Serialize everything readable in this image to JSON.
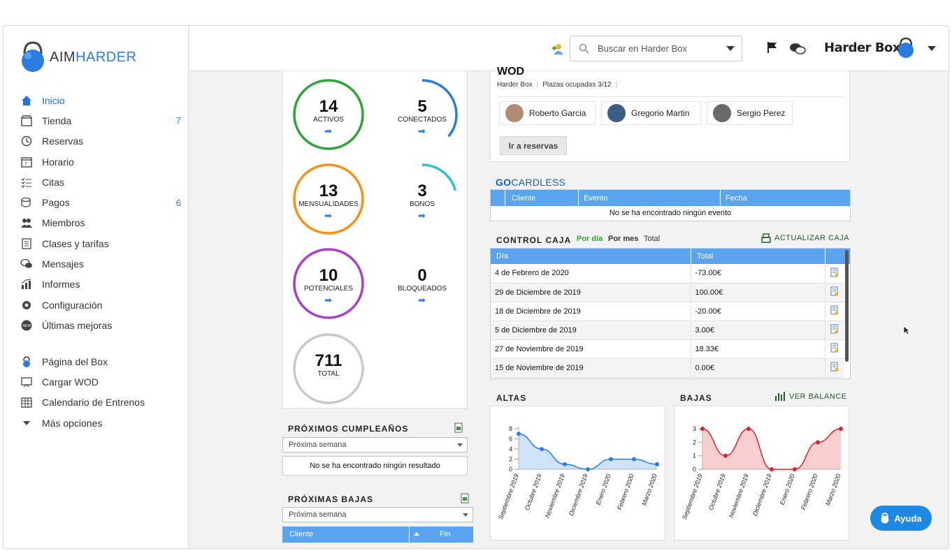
{
  "brand": {
    "logo_prefix": "AIM",
    "logo_suffix": "HARDER"
  },
  "sidebar": {
    "items": [
      {
        "label": "Inicio",
        "icon": "home-icon",
        "badge": ""
      },
      {
        "label": "Tienda",
        "icon": "shop-icon",
        "badge": "7"
      },
      {
        "label": "Reservas",
        "icon": "history-icon",
        "badge": ""
      },
      {
        "label": "Horario",
        "icon": "calendar-icon",
        "badge": ""
      },
      {
        "label": "Citas",
        "icon": "list-check-icon",
        "badge": ""
      },
      {
        "label": "Pagos",
        "icon": "coins-icon",
        "badge": "6"
      },
      {
        "label": "Miembros",
        "icon": "users-icon",
        "badge": ""
      },
      {
        "label": "Clases y tarifas",
        "icon": "clipboard-icon",
        "badge": ""
      },
      {
        "label": "Mensajes",
        "icon": "chat-icon",
        "badge": ""
      },
      {
        "label": "Informes",
        "icon": "chart-icon",
        "badge": ""
      },
      {
        "label": "Configuración",
        "icon": "gear-icon",
        "badge": ""
      },
      {
        "label": "Últimas mejoras",
        "icon": "new-badge-icon",
        "badge": ""
      }
    ],
    "secondary": [
      {
        "label": "Página del Box",
        "icon": "kettlebell-icon"
      },
      {
        "label": "Cargar WOD",
        "icon": "whiteboard-icon"
      },
      {
        "label": "Calendario de Entrenos",
        "icon": "grid-calendar-icon"
      },
      {
        "label": "Más opciones",
        "icon": "chevron-down-icon"
      }
    ]
  },
  "topbar": {
    "search_placeholder": "Buscar en Harder Box",
    "box_name": "Harder Box"
  },
  "stats": [
    {
      "value": "14",
      "label": "ACTIVOS",
      "color": "#2ea43a",
      "fill": 1.0
    },
    {
      "value": "5",
      "label": "CONECTADOS",
      "color": "#2a7de1",
      "fill": 0.36
    },
    {
      "value": "13",
      "label": "MENSUALIDADES",
      "color": "#f39419",
      "fill": 1.0
    },
    {
      "value": "3",
      "label": "BONOS",
      "color": "#2ec4c9",
      "fill": 0.21
    },
    {
      "value": "10",
      "label": "POTENCIALES",
      "color": "#a93fcf",
      "fill": 1.0
    },
    {
      "value": "0",
      "label": "BLOQUEADOS",
      "color": "#2a7de1",
      "fill": 0.0
    },
    {
      "value": "711",
      "label": "TOTAL",
      "color": "#c8c8c8",
      "fill": 1.0
    }
  ],
  "birthdays": {
    "title": "PRÓXIMOS CUMPLEAÑOS",
    "select": "Próxima semana",
    "empty": "No se ha encontrado ningún resultado"
  },
  "departures": {
    "title": "PRÓXIMAS BAJAS",
    "select": "Próxima semana",
    "col_client": "Cliente",
    "col_end": "Fin"
  },
  "wod": {
    "title": "WOD",
    "box": "Harder Box",
    "occupancy": "Plazas ocupadas 3/12",
    "athletes": [
      "Roberto Garcia",
      "Gregorio Martin",
      "Sergio Perez"
    ],
    "reserve_button": "Ir a reservas"
  },
  "gocardless": {
    "logo_go": "GO",
    "logo_rest": "CARDLESS",
    "columns": [
      "Cliente",
      "Evento",
      "Fecha"
    ],
    "empty": "No se ha encontrado ningún evento"
  },
  "control_caja": {
    "title": "CONTROL CAJA",
    "filters": [
      "Por día",
      "Por mes",
      "Total"
    ],
    "update_label": "ACTUALIZAR CAJA",
    "columns": [
      "Día",
      "Total"
    ],
    "rows": [
      {
        "day": "4 de Febrero de 2020",
        "total": "-73.00€"
      },
      {
        "day": "29 de Diciembre de 2019",
        "total": "100.00€"
      },
      {
        "day": "18 de Diciembre de 2019",
        "total": "-20.00€"
      },
      {
        "day": "5 de Diciembre de 2019",
        "total": "3.00€"
      },
      {
        "day": "27 de Noviembre de 2019",
        "total": "18.33€"
      },
      {
        "day": "15 de Noviembre de 2019",
        "total": "0.00€"
      }
    ]
  },
  "balance_label": "VER BALANCE",
  "help_button": "Ayuda",
  "chart_data": [
    {
      "type": "area",
      "title": "ALTAS",
      "categories": [
        "Septiembre 2019",
        "Octubre 2019",
        "Noviembre 2019",
        "Diciembre 2019",
        "Enero 2020",
        "Febrero 2020",
        "Marzo 2020"
      ],
      "values": [
        7,
        4,
        1,
        0,
        2,
        2,
        1
      ],
      "ylim": [
        0,
        8
      ],
      "yticks": [
        0,
        2,
        4,
        6,
        8
      ],
      "color": "#2a7de1"
    },
    {
      "type": "area",
      "title": "BAJAS",
      "categories": [
        "Septiembre 2019",
        "Octubre 2019",
        "Noviembre 2019",
        "Diciembre 2019",
        "Enero 2020",
        "Febrero 2020",
        "Marzo 2020"
      ],
      "values": [
        3,
        1,
        3,
        0,
        0,
        2,
        3
      ],
      "ylim": [
        0,
        3
      ],
      "yticks": [
        0,
        1,
        2,
        3
      ],
      "color": "#e0202a"
    }
  ]
}
